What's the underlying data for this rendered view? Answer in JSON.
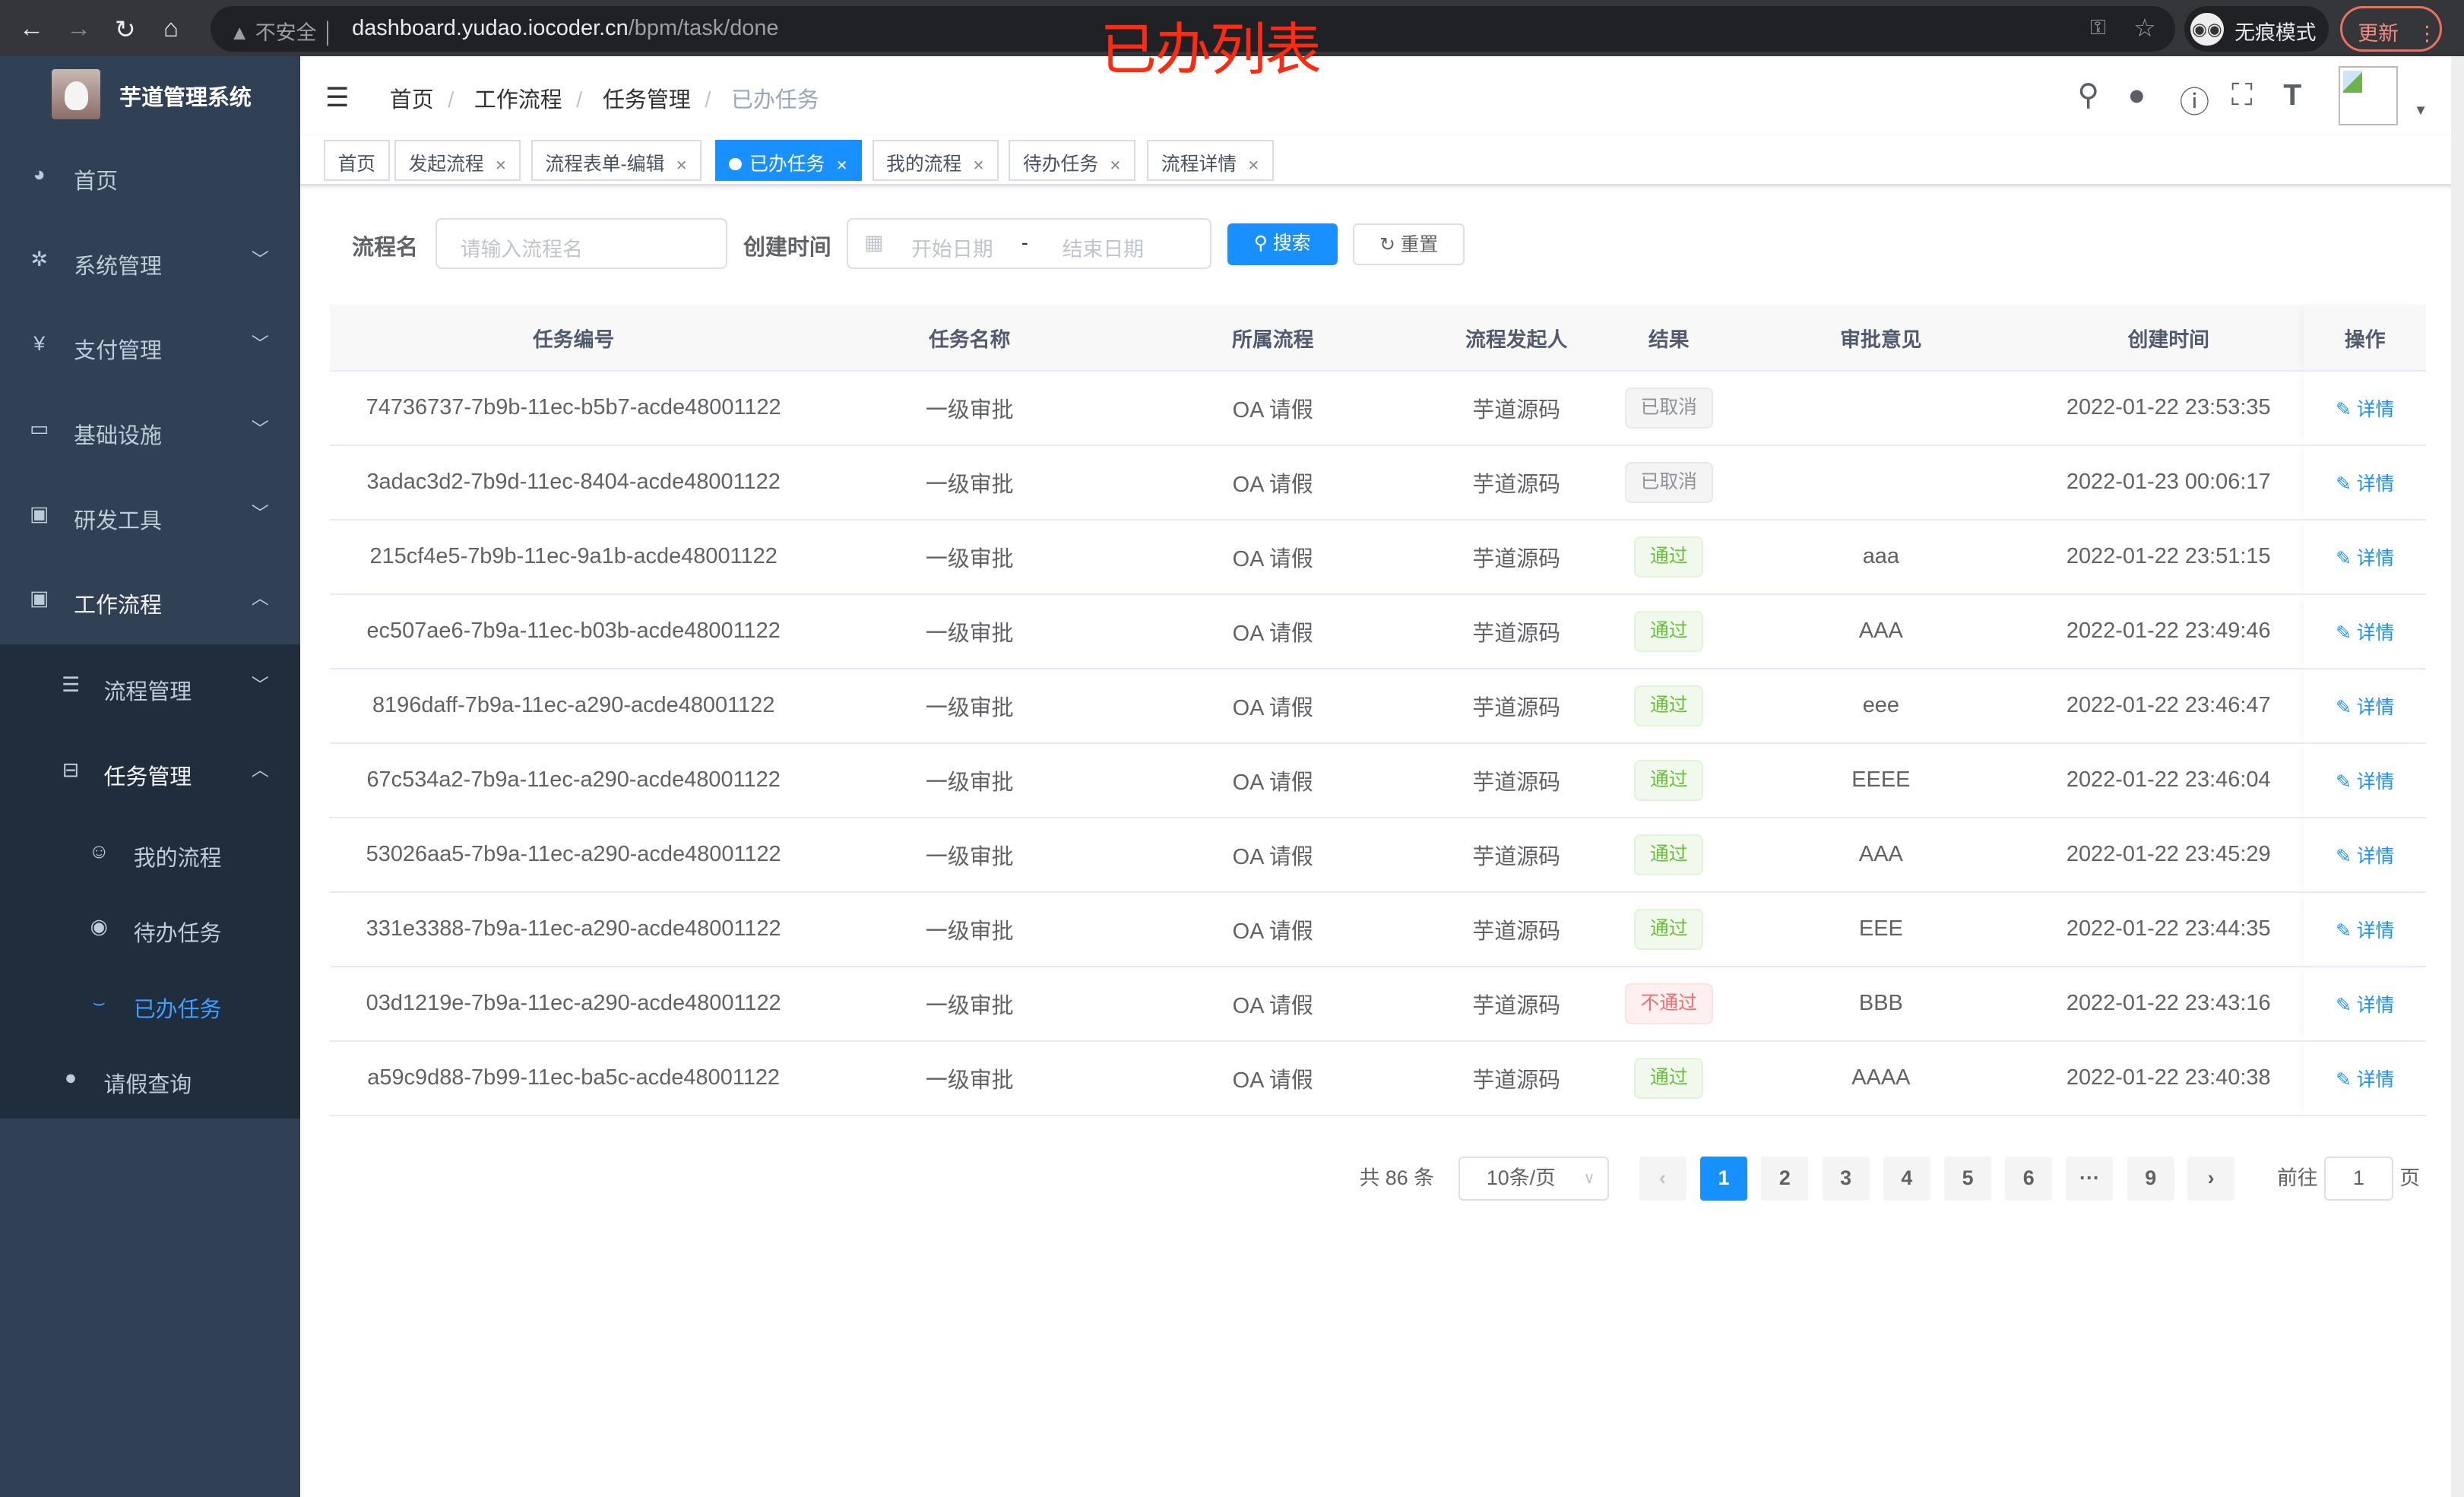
{
  "browser": {
    "security_label": "不安全",
    "url_host": "dashboard.yudao.iocoder.cn",
    "url_path": "/bpm/task/done",
    "incognito_label": "无痕模式",
    "update_label": "更新"
  },
  "overlay_title": "已办列表",
  "sidebar": {
    "app_title": "芋道管理系统",
    "items": [
      {
        "label": "首页",
        "icon": "dashboard-icon"
      },
      {
        "label": "系统管理",
        "icon": "gear-icon"
      },
      {
        "label": "支付管理",
        "icon": "yen-icon"
      },
      {
        "label": "基础设施",
        "icon": "monitor-icon"
      },
      {
        "label": "研发工具",
        "icon": "toolbox-icon"
      },
      {
        "label": "工作流程",
        "icon": "toolbox-icon"
      }
    ],
    "sub_items": [
      {
        "label": "流程管理",
        "icon": "list-icon"
      },
      {
        "label": "任务管理",
        "icon": "tree-icon"
      },
      {
        "label": "我的流程",
        "icon": "user-chat-icon"
      },
      {
        "label": "待办任务",
        "icon": "eye-icon"
      },
      {
        "label": "已办任务",
        "icon": "eye-closed-icon"
      },
      {
        "label": "请假查询",
        "icon": "user-icon"
      }
    ]
  },
  "breadcrumb": [
    "首页",
    "工作流程",
    "任务管理",
    "已办任务"
  ],
  "tags": [
    "首页",
    "发起流程",
    "流程表单-编辑",
    "已办任务",
    "我的流程",
    "待办任务",
    "流程详情"
  ],
  "active_tag": "已办任务",
  "form": {
    "name_label": "流程名",
    "name_placeholder": "请输入流程名",
    "time_label": "创建时间",
    "start_placeholder": "开始日期",
    "range_sep": "-",
    "end_placeholder": "结束日期",
    "search_label": "搜索",
    "reset_label": "重置"
  },
  "table": {
    "columns": [
      "任务编号",
      "任务名称",
      "所属流程",
      "流程发起人",
      "结果",
      "审批意见",
      "创建时间",
      "操作"
    ],
    "action_label": "详情",
    "rows": [
      {
        "id": "74736737-7b9b-11ec-b5b7-acde48001122",
        "name": "一级审批",
        "process": "OA 请假",
        "starter": "芋道源码",
        "result": "已取消",
        "result_type": "cancel",
        "comment": "",
        "time": "2022-01-22 23:53:35"
      },
      {
        "id": "3adac3d2-7b9d-11ec-8404-acde48001122",
        "name": "一级审批",
        "process": "OA 请假",
        "starter": "芋道源码",
        "result": "已取消",
        "result_type": "cancel",
        "comment": "",
        "time": "2022-01-23 00:06:17"
      },
      {
        "id": "215cf4e5-7b9b-11ec-9a1b-acde48001122",
        "name": "一级审批",
        "process": "OA 请假",
        "starter": "芋道源码",
        "result": "通过",
        "result_type": "pass",
        "comment": "aaa",
        "time": "2022-01-22 23:51:15"
      },
      {
        "id": "ec507ae6-7b9a-11ec-b03b-acde48001122",
        "name": "一级审批",
        "process": "OA 请假",
        "starter": "芋道源码",
        "result": "通过",
        "result_type": "pass",
        "comment": "AAA",
        "time": "2022-01-22 23:49:46"
      },
      {
        "id": "8196daff-7b9a-11ec-a290-acde48001122",
        "name": "一级审批",
        "process": "OA 请假",
        "starter": "芋道源码",
        "result": "通过",
        "result_type": "pass",
        "comment": "eee",
        "time": "2022-01-22 23:46:47"
      },
      {
        "id": "67c534a2-7b9a-11ec-a290-acde48001122",
        "name": "一级审批",
        "process": "OA 请假",
        "starter": "芋道源码",
        "result": "通过",
        "result_type": "pass",
        "comment": "EEEE",
        "time": "2022-01-22 23:46:04"
      },
      {
        "id": "53026aa5-7b9a-11ec-a290-acde48001122",
        "name": "一级审批",
        "process": "OA 请假",
        "starter": "芋道源码",
        "result": "通过",
        "result_type": "pass",
        "comment": "AAA",
        "time": "2022-01-22 23:45:29"
      },
      {
        "id": "331e3388-7b9a-11ec-a290-acde48001122",
        "name": "一级审批",
        "process": "OA 请假",
        "starter": "芋道源码",
        "result": "通过",
        "result_type": "pass",
        "comment": "EEE",
        "time": "2022-01-22 23:44:35"
      },
      {
        "id": "03d1219e-7b9a-11ec-a290-acde48001122",
        "name": "一级审批",
        "process": "OA 请假",
        "starter": "芋道源码",
        "result": "不通过",
        "result_type": "reject",
        "comment": "BBB",
        "time": "2022-01-22 23:43:16"
      },
      {
        "id": "a59c9d88-7b99-11ec-ba5c-acde48001122",
        "name": "一级审批",
        "process": "OA 请假",
        "starter": "芋道源码",
        "result": "通过",
        "result_type": "pass",
        "comment": "AAAA",
        "time": "2022-01-22 23:40:38"
      }
    ]
  },
  "pagination": {
    "total_label": "共 86 条",
    "page_size": "10条/页",
    "pages": [
      "1",
      "2",
      "3",
      "4",
      "5",
      "6",
      "···",
      "9"
    ],
    "current": "1",
    "goto_label": "前往",
    "goto_value": "1",
    "page_suffix": "页"
  },
  "colors": {
    "sidebar_bg": "#304156",
    "submenu_bg": "#1f2d3d",
    "primary": "#1890ff",
    "active_menu": "#409eff",
    "pass": "#67c23a",
    "reject": "#f56c6c",
    "overlay": "#ff2a12"
  }
}
